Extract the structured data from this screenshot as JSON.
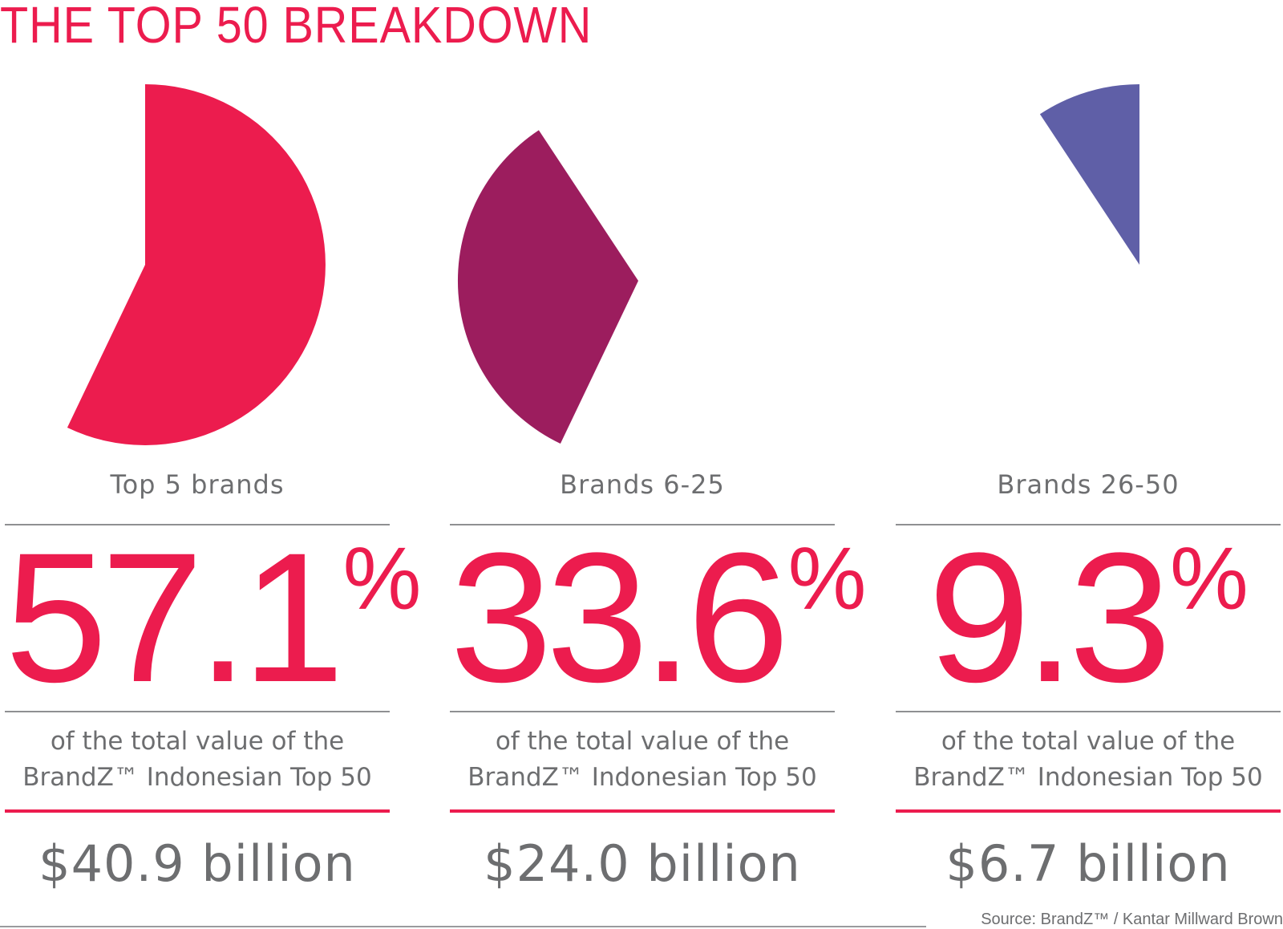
{
  "title": "THE TOP 50 BREAKDOWN",
  "chart_data": {
    "type": "pie",
    "segments": [
      {
        "label": "Top 5 brands",
        "value": 57.1,
        "value_text": "57.1",
        "unit": "%",
        "amount": "$40.9 billion",
        "color": "#ec1c4e"
      },
      {
        "label": "Brands 6-25",
        "value": 33.6,
        "value_text": "33.6",
        "unit": "%",
        "amount": "$24.0 billion",
        "color": "#9c1d5e"
      },
      {
        "label": "Brands 26-50",
        "value": 9.3,
        "value_text": "9.3",
        "unit": "%",
        "amount": "$6.7 billion",
        "color": "#5f5fa7"
      }
    ],
    "description_line1": "of the total value of the",
    "description_line2": "BrandZ™ Indonesian Top 50"
  },
  "source": "Source: BrandZ™ / Kantar Millward Brown"
}
